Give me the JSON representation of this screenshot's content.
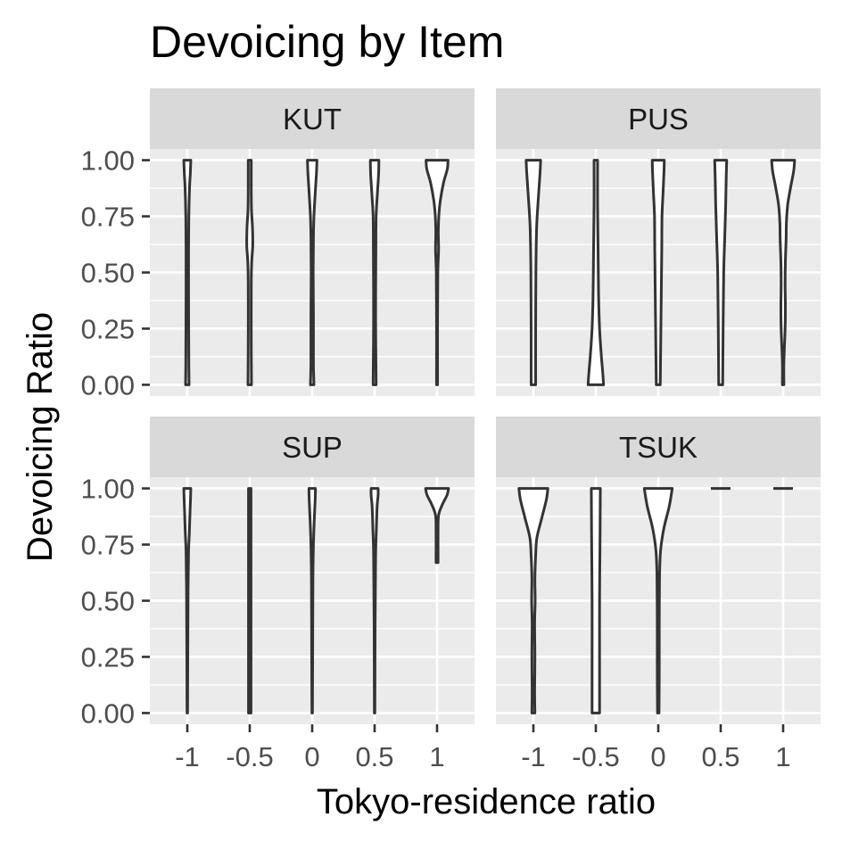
{
  "chart_data": {
    "type": "violin",
    "title": "Devoicing by Item",
    "xlabel": "Tokyo-residence ratio",
    "ylabel": "Devoicing Ratio",
    "x_ticks": [
      "-1",
      "-0.5",
      "0",
      "0.5",
      "1"
    ],
    "x_values": [
      -1,
      -0.5,
      0,
      0.5,
      1
    ],
    "y_ticks": [
      "0.00",
      "0.25",
      "0.50",
      "0.75",
      "1.00"
    ],
    "ylim": [
      0,
      1
    ],
    "grid": true,
    "panels": [
      {
        "name": "KUT",
        "violins": [
          {
            "x": -1,
            "profile": [
              [
                0.0,
                0.07
              ],
              [
                0.1,
                0.06
              ],
              [
                0.4,
                0.05
              ],
              [
                0.6,
                0.05
              ],
              [
                0.75,
                0.06
              ],
              [
                0.88,
                0.09
              ],
              [
                0.94,
                0.12
              ],
              [
                1.0,
                0.14
              ]
            ]
          },
          {
            "x": -0.5,
            "profile": [
              [
                0.0,
                0.07
              ],
              [
                0.2,
                0.06
              ],
              [
                0.45,
                0.06
              ],
              [
                0.55,
                0.08
              ],
              [
                0.62,
                0.12
              ],
              [
                0.7,
                0.11
              ],
              [
                0.78,
                0.07
              ],
              [
                0.88,
                0.06
              ],
              [
                1.0,
                0.06
              ]
            ]
          },
          {
            "x": 0,
            "profile": [
              [
                0.0,
                0.07
              ],
              [
                0.1,
                0.05
              ],
              [
                0.3,
                0.05
              ],
              [
                0.5,
                0.04
              ],
              [
                0.66,
                0.05
              ],
              [
                0.75,
                0.07
              ],
              [
                0.85,
                0.12
              ],
              [
                0.94,
                0.17
              ],
              [
                1.0,
                0.19
              ]
            ]
          },
          {
            "x": 0.5,
            "profile": [
              [
                0.0,
                0.06
              ],
              [
                0.3,
                0.04
              ],
              [
                0.6,
                0.05
              ],
              [
                0.75,
                0.06
              ],
              [
                0.85,
                0.11
              ],
              [
                0.94,
                0.16
              ],
              [
                1.0,
                0.17
              ]
            ]
          },
          {
            "x": 1,
            "profile": [
              [
                0.0,
                0.02
              ],
              [
                0.3,
                0.02
              ],
              [
                0.5,
                0.03
              ],
              [
                0.6,
                0.06
              ],
              [
                0.68,
                0.05
              ],
              [
                0.75,
                0.07
              ],
              [
                0.82,
                0.13
              ],
              [
                0.9,
                0.26
              ],
              [
                0.96,
                0.41
              ],
              [
                1.0,
                0.44
              ]
            ]
          }
        ]
      },
      {
        "name": "PUS",
        "violins": [
          {
            "x": -1,
            "profile": [
              [
                0.0,
                0.09
              ],
              [
                0.2,
                0.09
              ],
              [
                0.5,
                0.1
              ],
              [
                0.7,
                0.13
              ],
              [
                0.85,
                0.21
              ],
              [
                0.95,
                0.27
              ],
              [
                1.0,
                0.29
              ]
            ]
          },
          {
            "x": -0.5,
            "profile": [
              [
                0.0,
                0.31
              ],
              [
                0.05,
                0.28
              ],
              [
                0.13,
                0.22
              ],
              [
                0.25,
                0.15
              ],
              [
                0.4,
                0.11
              ],
              [
                0.6,
                0.09
              ],
              [
                0.8,
                0.07
              ],
              [
                1.0,
                0.07
              ]
            ]
          },
          {
            "x": 0,
            "profile": [
              [
                0.0,
                0.08
              ],
              [
                0.2,
                0.1
              ],
              [
                0.4,
                0.12
              ],
              [
                0.6,
                0.14
              ],
              [
                0.75,
                0.15
              ],
              [
                0.85,
                0.19
              ],
              [
                0.95,
                0.23
              ],
              [
                1.0,
                0.24
              ]
            ]
          },
          {
            "x": 0.5,
            "profile": [
              [
                0.0,
                0.08
              ],
              [
                0.3,
                0.1
              ],
              [
                0.5,
                0.12
              ],
              [
                0.65,
                0.16
              ],
              [
                0.8,
                0.2
              ],
              [
                0.92,
                0.22
              ],
              [
                1.0,
                0.24
              ]
            ]
          },
          {
            "x": 1,
            "profile": [
              [
                0.0,
                0.03
              ],
              [
                0.1,
                0.03
              ],
              [
                0.25,
                0.08
              ],
              [
                0.35,
                0.09
              ],
              [
                0.45,
                0.08
              ],
              [
                0.55,
                0.09
              ],
              [
                0.65,
                0.12
              ],
              [
                0.72,
                0.13
              ],
              [
                0.8,
                0.18
              ],
              [
                0.88,
                0.3
              ],
              [
                0.95,
                0.42
              ],
              [
                1.0,
                0.46
              ]
            ]
          }
        ]
      },
      {
        "name": "SUP",
        "violins": [
          {
            "x": -1,
            "profile": [
              [
                0.0,
                0.01
              ],
              [
                0.3,
                0.02
              ],
              [
                0.55,
                0.03
              ],
              [
                0.72,
                0.05
              ],
              [
                0.8,
                0.08
              ],
              [
                0.9,
                0.11
              ],
              [
                0.96,
                0.13
              ],
              [
                1.0,
                0.14
              ]
            ]
          },
          {
            "x": -0.5,
            "profile": [
              [
                0.0,
                0.05
              ],
              [
                0.5,
                0.05
              ],
              [
                1.0,
                0.05
              ]
            ]
          },
          {
            "x": 0,
            "profile": [
              [
                0.0,
                0.01
              ],
              [
                0.3,
                0.02
              ],
              [
                0.6,
                0.03
              ],
              [
                0.75,
                0.05
              ],
              [
                0.85,
                0.08
              ],
              [
                0.95,
                0.12
              ],
              [
                1.0,
                0.13
              ]
            ]
          },
          {
            "x": 0.5,
            "profile": [
              [
                0.0,
                0.01
              ],
              [
                0.4,
                0.02
              ],
              [
                0.7,
                0.04
              ],
              [
                0.82,
                0.07
              ],
              [
                0.92,
                0.1
              ],
              [
                0.97,
                0.14
              ],
              [
                1.0,
                0.14
              ]
            ]
          },
          {
            "x": 1,
            "profile": [
              [
                0.67,
                0.04
              ],
              [
                0.72,
                0.04
              ],
              [
                0.8,
                0.04
              ],
              [
                0.88,
                0.06
              ],
              [
                0.93,
                0.22
              ],
              [
                0.97,
                0.4
              ],
              [
                1.0,
                0.46
              ]
            ]
          }
        ]
      },
      {
        "name": "TSUK",
        "violins": [
          {
            "x": -1,
            "profile": [
              [
                0.0,
                0.06
              ],
              [
                0.1,
                0.05
              ],
              [
                0.25,
                0.06
              ],
              [
                0.4,
                0.05
              ],
              [
                0.5,
                0.07
              ],
              [
                0.6,
                0.06
              ],
              [
                0.7,
                0.09
              ],
              [
                0.78,
                0.14
              ],
              [
                0.87,
                0.34
              ],
              [
                0.95,
                0.52
              ],
              [
                1.0,
                0.58
              ]
            ]
          },
          {
            "x": -0.5,
            "profile": [
              [
                0.0,
                0.15
              ],
              [
                0.2,
                0.15
              ],
              [
                0.5,
                0.15
              ],
              [
                0.8,
                0.17
              ],
              [
                1.0,
                0.18
              ]
            ]
          },
          {
            "x": 0,
            "profile": [
              [
                0.0,
                0.03
              ],
              [
                0.2,
                0.04
              ],
              [
                0.4,
                0.04
              ],
              [
                0.6,
                0.05
              ],
              [
                0.72,
                0.09
              ],
              [
                0.82,
                0.22
              ],
              [
                0.92,
                0.44
              ],
              [
                1.0,
                0.56
              ]
            ]
          },
          {
            "x": 0.5,
            "profile": [
              [
                1.0,
                0.0
              ]
            ],
            "dash": true
          },
          {
            "x": 1,
            "profile": [
              [
                1.0,
                0.0
              ]
            ],
            "dash": true
          }
        ]
      }
    ]
  },
  "colors": {
    "panel_background": "#ebebeb",
    "grid": "#ffffff",
    "strip_background": "#d9d9d9",
    "violin_stroke": "#333333",
    "violin_fill": "#ffffff",
    "axis_text": "#4d4d4d",
    "title_text": "#000000"
  }
}
